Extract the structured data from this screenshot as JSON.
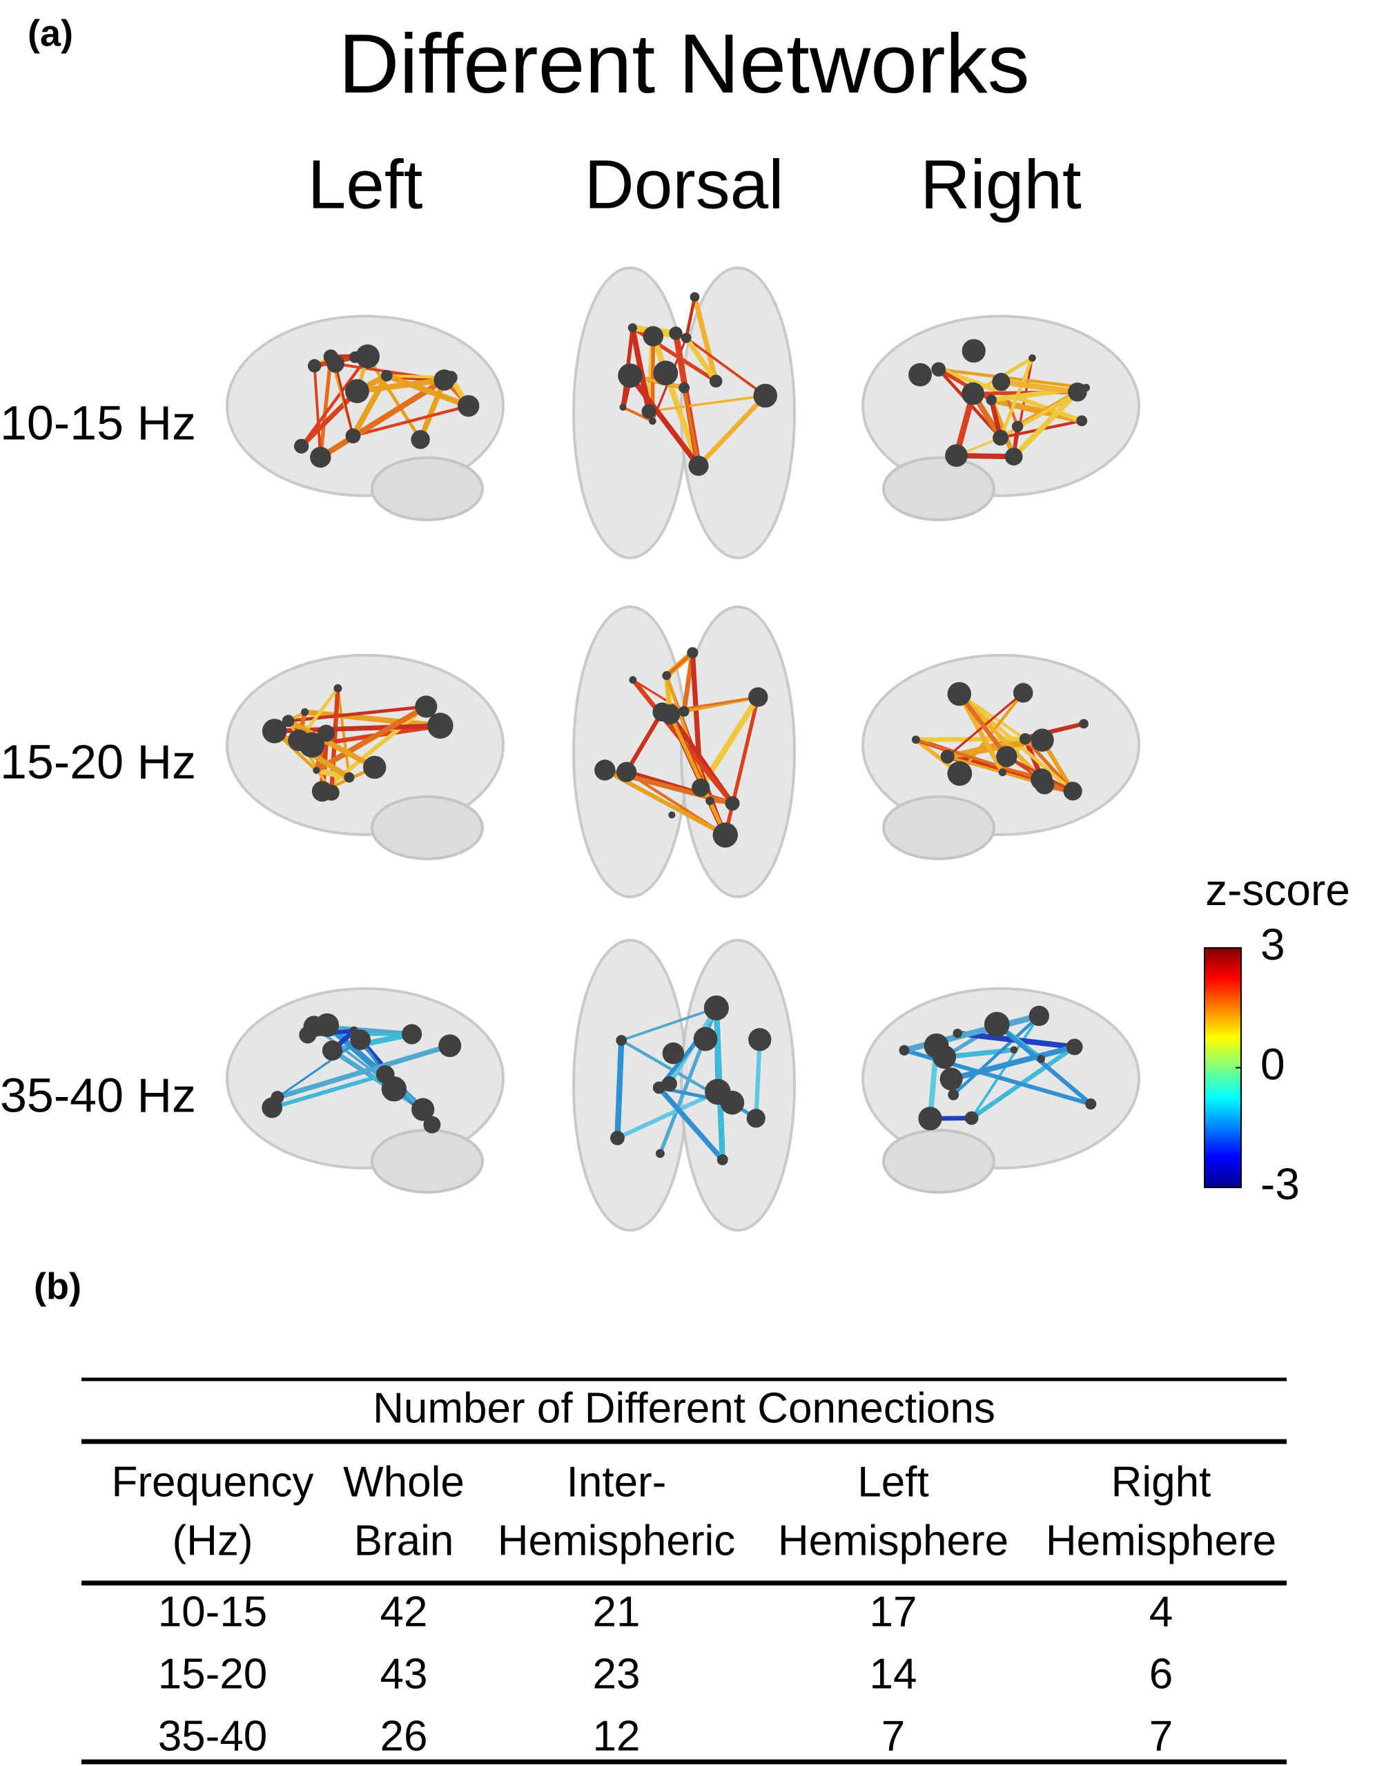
{
  "panel_a": {
    "label": "(a)",
    "title": "Different Networks",
    "views": [
      "Left",
      "Dorsal",
      "Right"
    ],
    "bands": [
      "10-15 Hz",
      "15-20 Hz",
      "35-40 Hz"
    ],
    "colorbar": {
      "title": "z-score",
      "ticks": [
        3,
        0,
        -3
      ]
    }
  },
  "panel_b": {
    "label": "(b)",
    "table": {
      "caption": "Number of Different Connections",
      "header": [
        [
          "Frequency",
          "(Hz)"
        ],
        [
          "Whole",
          "Brain"
        ],
        [
          "Inter-",
          "Hemispheric"
        ],
        [
          "Left",
          "Hemisphere"
        ],
        [
          "Right",
          "Hemisphere"
        ]
      ],
      "rows": [
        [
          "10-15",
          42,
          21,
          17,
          4
        ],
        [
          "15-20",
          43,
          23,
          14,
          6
        ],
        [
          "35-40",
          26,
          12,
          7,
          7
        ]
      ]
    }
  }
}
